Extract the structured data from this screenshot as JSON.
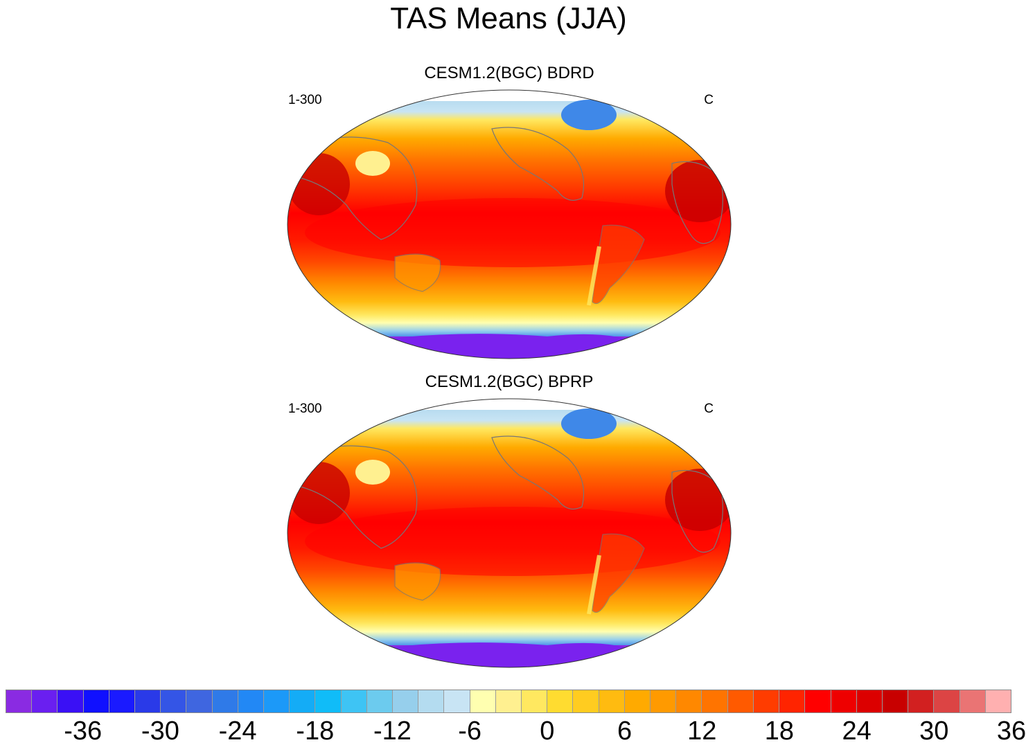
{
  "title": "TAS Means (JJA)",
  "panels": [
    {
      "title": "CESM1.2(BGC) BDRD",
      "left_label": "1-300",
      "right_label": "C"
    },
    {
      "title": "CESM1.2(BGC) BPRP",
      "left_label": "1-300",
      "right_label": "C"
    }
  ],
  "colorbar": {
    "colors": [
      "#8a2be2",
      "#6a1ff0",
      "#3a10f5",
      "#1010ff",
      "#1a1aff",
      "#2a3ae8",
      "#3455e6",
      "#3f66e0",
      "#2f7ae8",
      "#2288f5",
      "#1c99f8",
      "#14acf6",
      "#10bcf8",
      "#3ec4f4",
      "#6ccbee",
      "#96cfec",
      "#b4dcf0",
      "#c8e4f4",
      "#ffffb0",
      "#fff090",
      "#ffe860",
      "#ffdc30",
      "#ffcc20",
      "#ffbb10",
      "#ffaa00",
      "#ff9a00",
      "#ff8800",
      "#ff7400",
      "#ff5a00",
      "#ff3c00",
      "#ff2400",
      "#ff0000",
      "#ee0000",
      "#dc0000",
      "#c80000",
      "#d22020",
      "#dc4444",
      "#ea7474",
      "#ffb0b0"
    ],
    "tick_labels": [
      "-36",
      "-30",
      "-24",
      "-18",
      "-12",
      "-6",
      "0",
      "6",
      "12",
      "18",
      "24",
      "30",
      "36"
    ],
    "tick_box_index": [
      3,
      6,
      9,
      12,
      15,
      18,
      21,
      24,
      27,
      30,
      33,
      36,
      39
    ]
  }
}
